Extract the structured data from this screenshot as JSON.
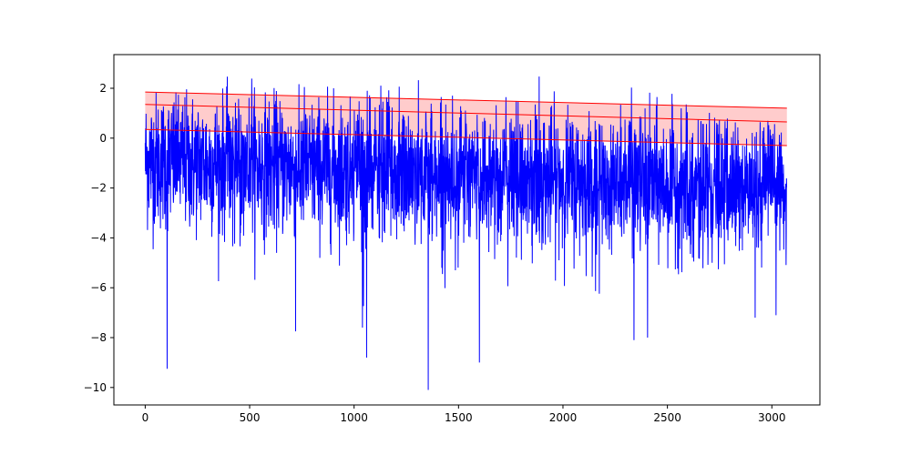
{
  "chart_data": {
    "type": "line",
    "title": "",
    "xlabel": "",
    "ylabel": "",
    "xlim": [
      -150,
      3230
    ],
    "ylim": [
      -10.7,
      3.35
    ],
    "grid": false,
    "legend": "none",
    "xticks": [
      0,
      500,
      1000,
      1500,
      2000,
      2500,
      3000
    ],
    "yticks": [
      -10,
      -8,
      -6,
      -4,
      -2,
      0,
      2
    ],
    "xtick_labels": [
      "0",
      "500",
      "1000",
      "1500",
      "2000",
      "2500",
      "3000"
    ],
    "ytick_labels": [
      "−10",
      "−8",
      "−6",
      "−4",
      "−2",
      "0",
      "2"
    ],
    "series": [
      {
        "kind": "noisy-line",
        "color": "#0000ff",
        "n_points": 3072,
        "start": -0.2,
        "trend_start": -0.9,
        "trend_end": -2.1,
        "upper_envelope": [
          [
            0,
            2.2
          ],
          [
            500,
            2.6
          ],
          [
            1000,
            1.9
          ],
          [
            1430,
            2.75
          ],
          [
            2200,
            2.65
          ],
          [
            3072,
            0.5
          ]
        ],
        "spikes": [
          [
            105,
            -9.25
          ],
          [
            720,
            -7.75
          ],
          [
            1040,
            -7.6
          ],
          [
            1060,
            -8.8
          ],
          [
            1355,
            -10.1
          ],
          [
            1600,
            -9.0
          ],
          [
            2340,
            -8.1
          ],
          [
            2405,
            -8.0
          ],
          [
            2920,
            -7.2
          ],
          [
            3020,
            -7.1
          ]
        ]
      },
      {
        "kind": "line",
        "color": "#ff0000",
        "x": [
          0,
          3072
        ],
        "y": [
          1.85,
          1.2
        ]
      },
      {
        "kind": "line",
        "color": "#ff0000",
        "x": [
          0,
          3072
        ],
        "y": [
          1.35,
          0.65
        ]
      },
      {
        "kind": "line",
        "color": "#ff0000",
        "x": [
          0,
          3072
        ],
        "y": [
          0.35,
          -0.3
        ]
      }
    ],
    "band": {
      "color": "#ff0000",
      "opacity": 0.2,
      "x": [
        0,
        3072
      ],
      "lower": [
        0.35,
        -0.3
      ],
      "upper": [
        1.85,
        1.2
      ]
    }
  }
}
